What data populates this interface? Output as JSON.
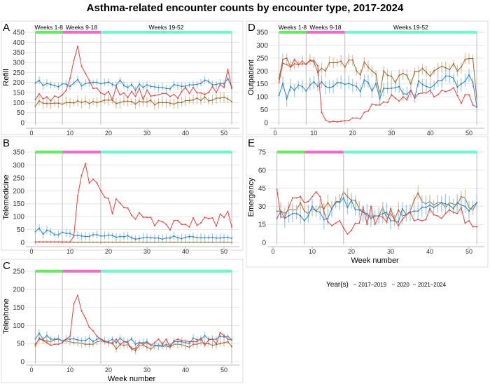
{
  "title": "Asthma-related encounter counts by encounter type, 2017-2024",
  "legend": {
    "title": "Year(s)",
    "items": [
      "2017–2019",
      "2020",
      "2021–2024"
    ]
  },
  "colors": {
    "2017–2019": "#2b83c6",
    "2020": "#e8433f",
    "2021–2024": "#9a6a2e",
    "err_2017–2019": "#9ecae1",
    "err_2021–2024": "#d9bf9a",
    "period1": "#5fef5a",
    "period2": "#ff66cc",
    "period3": "#66ffc8"
  },
  "chart_data": [
    {
      "panel": "A",
      "type": "line",
      "ylabel": "Refill",
      "xlabel": "",
      "ylim": [
        0,
        450
      ],
      "yticks": [
        0,
        50,
        100,
        150,
        200,
        250,
        300,
        350,
        400,
        450
      ],
      "xticks": [
        0,
        10,
        20,
        30,
        40,
        50
      ],
      "periods": [
        {
          "label": "Weeks 1-8",
          "from": 1,
          "to": 8
        },
        {
          "label": "Weeks 9-18",
          "from": 8,
          "to": 18
        },
        {
          "label": "Weeks 19-52",
          "from": 18,
          "to": 52
        }
      ],
      "show_period_labels": true,
      "series": [
        {
          "name": "2017–2019",
          "err": 22,
          "values": [
            197,
            210,
            185,
            195,
            190,
            185,
            178,
            193,
            192,
            180,
            197,
            215,
            183,
            195,
            198,
            200,
            200,
            193,
            197,
            202,
            190,
            185,
            212,
            185,
            175,
            190,
            160,
            192,
            175,
            188,
            180,
            178,
            175,
            175,
            170,
            168,
            190,
            185,
            180,
            182,
            188,
            188,
            190,
            195,
            212,
            205,
            188,
            190,
            195,
            193,
            220,
            175
          ]
        },
        {
          "name": "2020",
          "values": [
            115,
            143,
            118,
            128,
            108,
            133,
            125,
            138,
            160,
            220,
            310,
            380,
            280,
            245,
            210,
            170,
            172,
            148,
            140,
            155,
            112,
            178,
            138,
            148,
            125,
            155,
            130,
            170,
            115,
            162,
            132,
            135,
            138,
            145,
            145,
            130,
            140,
            122,
            155,
            175,
            145,
            175,
            148,
            148,
            140,
            150,
            180,
            150,
            190,
            175,
            265,
            170
          ]
        },
        {
          "name": "2021–2024",
          "err": 30,
          "values": [
            82,
            108,
            97,
            95,
            95,
            97,
            97,
            92,
            100,
            100,
            98,
            108,
            100,
            107,
            95,
            105,
            100,
            105,
            112,
            112,
            112,
            95,
            100,
            107,
            107,
            105,
            92,
            107,
            103,
            103,
            112,
            88,
            100,
            100,
            100,
            97,
            92,
            100,
            100,
            110,
            110,
            113,
            122,
            110,
            128,
            108,
            112,
            122,
            122,
            127,
            118,
            105
          ]
        }
      ]
    },
    {
      "panel": "B",
      "type": "line",
      "ylabel": "Telemedicine",
      "xlabel": "",
      "ylim": [
        0,
        350
      ],
      "yticks": [
        0,
        50,
        100,
        150,
        200,
        250,
        300,
        350
      ],
      "xticks": [
        0,
        10,
        20,
        30,
        40,
        50
      ],
      "periods": [
        {
          "label": "Weeks 1-8",
          "from": 1,
          "to": 8
        },
        {
          "label": "Weeks 9-18",
          "from": 8,
          "to": 18
        },
        {
          "label": "Weeks 19-52",
          "from": 18,
          "to": 52
        }
      ],
      "show_period_labels": false,
      "series": [
        {
          "name": "2017–2019",
          "err": 18,
          "values": [
            42,
            55,
            32,
            47,
            42,
            30,
            30,
            40,
            35,
            35,
            27,
            27,
            25,
            23,
            23,
            30,
            30,
            25,
            25,
            28,
            27,
            20,
            23,
            22,
            26,
            18,
            13,
            15,
            18,
            20,
            18,
            17,
            17,
            13,
            17,
            17,
            25,
            18,
            15,
            20,
            23,
            22,
            19,
            18,
            18,
            19,
            19,
            17,
            17,
            19,
            19,
            16
          ]
        },
        {
          "name": "2020",
          "values": [
            2,
            2,
            2,
            2,
            2,
            2,
            2,
            2,
            2,
            2,
            25,
            180,
            260,
            305,
            230,
            245,
            230,
            200,
            175,
            170,
            112,
            168,
            152,
            135,
            133,
            105,
            90,
            115,
            98,
            97,
            97,
            65,
            85,
            80,
            70,
            48,
            85,
            85,
            70,
            70,
            60,
            95,
            66,
            76,
            97,
            93,
            95,
            63,
            110,
            97,
            120,
            60
          ]
        },
        {
          "name": "2021–2024",
          "err": 1,
          "values": [
            2,
            2,
            2,
            2,
            2,
            2,
            2,
            1,
            1,
            1,
            1,
            1,
            1,
            1,
            1,
            1,
            1,
            1,
            1,
            1,
            1,
            1,
            1,
            1,
            1,
            1,
            1,
            1,
            1,
            1,
            1,
            1,
            1,
            1,
            1,
            1,
            1,
            1,
            1,
            1,
            1,
            1,
            1,
            1,
            1,
            1,
            1,
            1,
            1,
            1,
            1,
            1
          ]
        }
      ]
    },
    {
      "panel": "C",
      "type": "line",
      "ylabel": "Telephone",
      "xlabel": "Week number",
      "ylim": [
        0,
        250
      ],
      "yticks": [
        0,
        50,
        100,
        150,
        200,
        250
      ],
      "xticks": [
        0,
        10,
        20,
        30,
        40,
        50
      ],
      "periods": [
        {
          "label": "Weeks 1-8",
          "from": 1,
          "to": 8
        },
        {
          "label": "Weeks 9-18",
          "from": 8,
          "to": 18
        },
        {
          "label": "Weeks 19-52",
          "from": 18,
          "to": 52
        }
      ],
      "show_period_labels": false,
      "series": [
        {
          "name": "2017–2019",
          "err": 12,
          "values": [
            63,
            78,
            62,
            72,
            62,
            62,
            63,
            57,
            62,
            62,
            63,
            60,
            58,
            58,
            65,
            55,
            62,
            63,
            57,
            55,
            62,
            52,
            65,
            55,
            55,
            63,
            48,
            53,
            52,
            55,
            45,
            45,
            45,
            45,
            47,
            45,
            55,
            55,
            55,
            52,
            50,
            65,
            60,
            60,
            72,
            62,
            62,
            62,
            70,
            68,
            70,
            60
          ]
        },
        {
          "name": "2020",
          "values": [
            43,
            65,
            58,
            52,
            45,
            48,
            48,
            52,
            62,
            70,
            160,
            183,
            140,
            120,
            95,
            85,
            70,
            62,
            55,
            52,
            50,
            62,
            47,
            55,
            52,
            37,
            35,
            52,
            48,
            52,
            45,
            52,
            62,
            48,
            62,
            40,
            58,
            62,
            58,
            57,
            55,
            55,
            55,
            65,
            45,
            60,
            62,
            48,
            80,
            72,
            62,
            60
          ]
        },
        {
          "name": "2021–2024",
          "err": 12,
          "values": [
            48,
            62,
            60,
            57,
            55,
            60,
            62,
            57,
            57,
            55,
            52,
            52,
            50,
            48,
            48,
            48,
            55,
            57,
            55,
            52,
            52,
            35,
            47,
            45,
            47,
            35,
            30,
            45,
            45,
            40,
            35,
            43,
            43,
            42,
            43,
            40,
            48,
            48,
            47,
            43,
            40,
            48,
            48,
            52,
            50,
            50,
            45,
            47,
            50,
            52,
            55,
            42
          ]
        }
      ]
    },
    {
      "panel": "D",
      "type": "line",
      "ylabel": "Outpatient",
      "xlabel": "",
      "ylim": [
        0,
        350
      ],
      "yticks": [
        0,
        50,
        100,
        150,
        200,
        250,
        300,
        350
      ],
      "xticks": [
        0,
        10,
        20,
        30,
        40,
        50
      ],
      "periods": [
        {
          "label": "Weeks 1-8",
          "from": 1,
          "to": 8
        },
        {
          "label": "Weeks 9-18",
          "from": 8,
          "to": 18
        },
        {
          "label": "Weeks 19-52",
          "from": 18,
          "to": 52
        }
      ],
      "show_period_labels": true,
      "series": [
        {
          "name": "2017–2019",
          "err": 30,
          "values": [
            105,
            152,
            92,
            140,
            125,
            145,
            140,
            122,
            145,
            158,
            140,
            158,
            140,
            135,
            140,
            155,
            155,
            148,
            152,
            145,
            140,
            120,
            165,
            155,
            122,
            152,
            92,
            133,
            132,
            133,
            135,
            140,
            112,
            110,
            125,
            95,
            162,
            148,
            140,
            135,
            145,
            162,
            163,
            180,
            180,
            172,
            138,
            150,
            160,
            185,
            155,
            65
          ]
        },
        {
          "name": "2020",
          "values": [
            155,
            230,
            225,
            215,
            245,
            225,
            228,
            227,
            242,
            240,
            220,
            40,
            10,
            2,
            5,
            3,
            5,
            7,
            8,
            18,
            18,
            15,
            40,
            45,
            72,
            68,
            68,
            80,
            78,
            108,
            95,
            83,
            100,
            88,
            125,
            95,
            112,
            115,
            115,
            125,
            100,
            108,
            125,
            120,
            125,
            135,
            105,
            75,
            108,
            108,
            68,
            60
          ]
        },
        {
          "name": "2021–2024",
          "err": 25,
          "values": [
            170,
            245,
            250,
            215,
            228,
            225,
            238,
            225,
            240,
            235,
            195,
            210,
            200,
            232,
            232,
            232,
            238,
            215,
            242,
            242,
            200,
            185,
            235,
            215,
            200,
            188,
            105,
            200,
            183,
            180,
            155,
            183,
            190,
            183,
            148,
            197,
            197,
            210,
            195,
            180,
            200,
            210,
            218,
            212,
            205,
            228,
            200,
            215,
            245,
            248,
            248,
            90
          ]
        }
      ]
    },
    {
      "panel": "E",
      "type": "line",
      "ylabel": "Emergency",
      "xlabel": "Week number",
      "ylim": [
        0,
        75
      ],
      "yticks": [
        0,
        15,
        30,
        45,
        60,
        75
      ],
      "xticks": [
        0,
        10,
        20,
        30,
        40,
        50
      ],
      "periods": [
        {
          "label": "Weeks 1-8",
          "from": 1,
          "to": 8
        },
        {
          "label": "Weeks 9-18",
          "from": 8,
          "to": 18
        },
        {
          "label": "Weeks 19-52",
          "from": 18,
          "to": 52
        }
      ],
      "show_period_labels": false,
      "series": [
        {
          "name": "2017–2019",
          "err": 8,
          "values": [
            20,
            26,
            20,
            22,
            24,
            24,
            22,
            18,
            22,
            30,
            26,
            25,
            19,
            20,
            28,
            33,
            33,
            37,
            29,
            35,
            27,
            27,
            25,
            24,
            20,
            22,
            22,
            24,
            25,
            18,
            18,
            17,
            28,
            23,
            25,
            26,
            26,
            29,
            29,
            31,
            29,
            31,
            33,
            32,
            31,
            28,
            33,
            31,
            30,
            26,
            30,
            33
          ]
        },
        {
          "name": "2020",
          "values": [
            44,
            21,
            21,
            29,
            37,
            37,
            38,
            33,
            34,
            38,
            42,
            38,
            25,
            17,
            14,
            16,
            18,
            12,
            7,
            10,
            16,
            16,
            29,
            15,
            30,
            15,
            22,
            21,
            17,
            28,
            19,
            14,
            19,
            23,
            25,
            18,
            19,
            18,
            19,
            28,
            23,
            22,
            20,
            24,
            27,
            25,
            24,
            29,
            16,
            18,
            13,
            13
          ]
        },
        {
          "name": "2021–2024",
          "err": 7,
          "values": [
            26,
            26,
            24,
            27,
            27,
            27,
            33,
            26,
            24,
            28,
            26,
            30,
            28,
            33,
            28,
            34,
            34,
            42,
            38,
            35,
            35,
            28,
            26,
            22,
            22,
            22,
            22,
            29,
            20,
            24,
            19,
            27,
            22,
            23,
            26,
            35,
            41,
            34,
            32,
            34,
            31,
            33,
            33,
            29,
            33,
            32,
            31,
            38,
            37,
            29,
            27,
            33
          ]
        }
      ]
    }
  ]
}
